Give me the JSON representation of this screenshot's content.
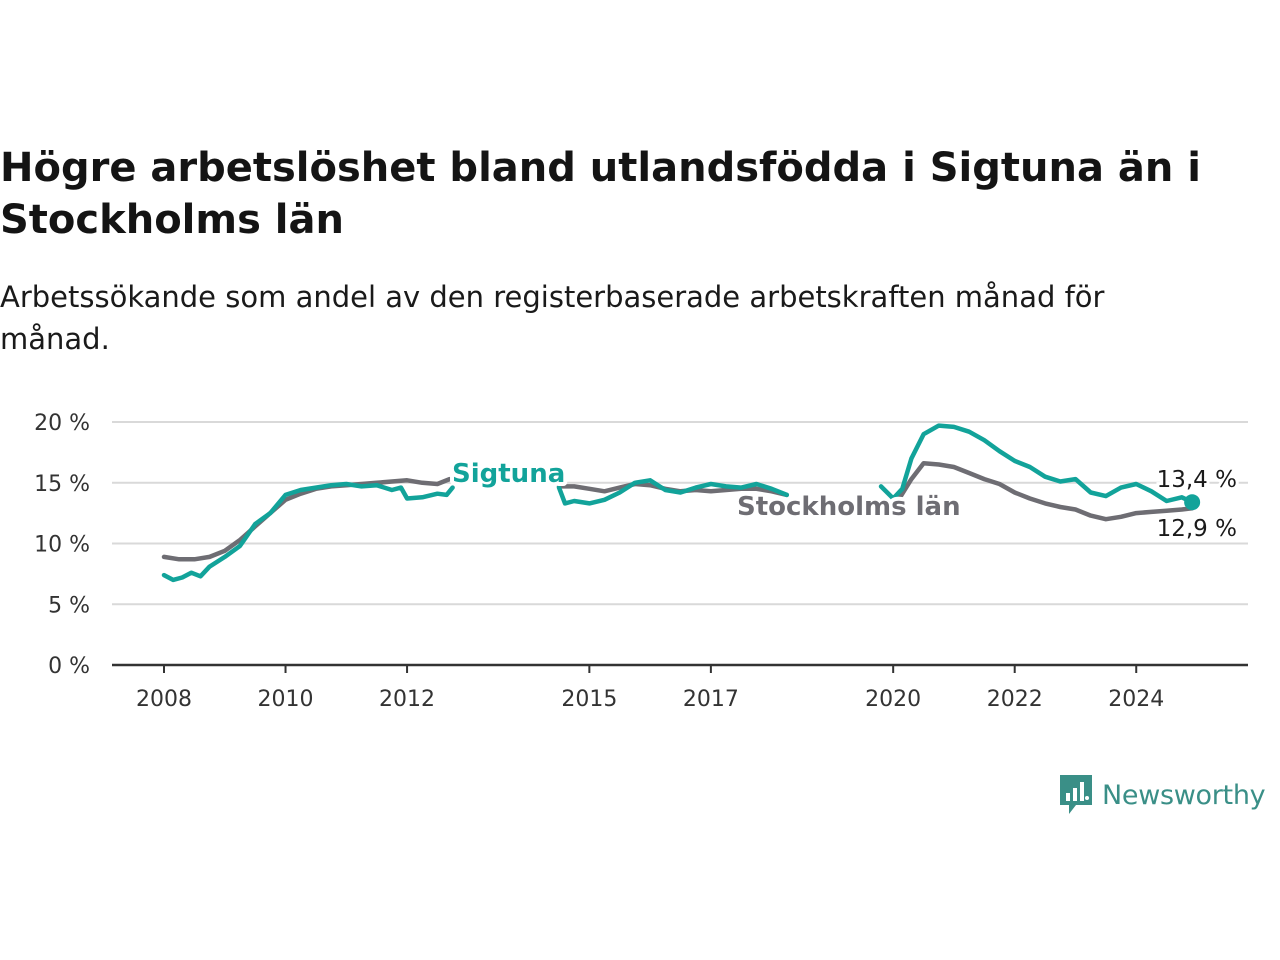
{
  "title": "Högre arbetslöshet bland utlandsfödda i Sigtuna än i Stockholms län",
  "subtitle": "Arbetssökande som andel av den registerbaserade arbetskraften månad för månad.",
  "brand": {
    "name": "Newsworthy",
    "icon": "newsworthy-logo-icon",
    "color": "#3a8f87"
  },
  "chart_data": {
    "type": "line",
    "title": "Högre arbetslöshet bland utlandsfödda i Sigtuna än i Stockholms län",
    "subtitle": "Arbetssökande som andel av den registerbaserade arbetskraften månad för månad.",
    "xlabel": "",
    "ylabel": "",
    "grid": true,
    "legend": "inline labels",
    "xlim": [
      2008,
      2025
    ],
    "ylim": [
      0,
      20
    ],
    "x_ticks": [
      2008,
      2010,
      2012,
      2015,
      2017,
      2020,
      2022,
      2024
    ],
    "x_tick_labels": [
      "2008",
      "2010",
      "2012",
      "2015",
      "2017",
      "2020",
      "2022",
      "2024"
    ],
    "y_ticks": [
      0,
      5,
      10,
      15,
      20
    ],
    "y_tick_labels": [
      "0 %",
      "5 %",
      "10 %",
      "15 %",
      "20 %"
    ],
    "series": [
      {
        "name": "Stockholms län",
        "color": "#6e6d73",
        "end_label": "12,9 %",
        "points": [
          [
            2008.0,
            8.9
          ],
          [
            2008.25,
            8.7
          ],
          [
            2008.5,
            8.7
          ],
          [
            2008.75,
            8.9
          ],
          [
            2009.0,
            9.4
          ],
          [
            2009.25,
            10.3
          ],
          [
            2009.5,
            11.4
          ],
          [
            2009.75,
            12.5
          ],
          [
            2010.0,
            13.6
          ],
          [
            2010.25,
            14.1
          ],
          [
            2010.5,
            14.5
          ],
          [
            2010.75,
            14.7
          ],
          [
            2011.0,
            14.8
          ],
          [
            2011.25,
            14.9
          ],
          [
            2011.5,
            15.0
          ],
          [
            2011.75,
            15.1
          ],
          [
            2012.0,
            15.2
          ],
          [
            2012.25,
            15.0
          ],
          [
            2012.5,
            14.9
          ],
          [
            2012.7,
            15.3
          ],
          null,
          [
            2014.5,
            14.7
          ],
          [
            2014.75,
            14.7
          ],
          [
            2015.0,
            14.5
          ],
          [
            2015.25,
            14.3
          ],
          [
            2015.5,
            14.6
          ],
          [
            2015.75,
            14.9
          ],
          [
            2016.0,
            14.8
          ],
          [
            2016.25,
            14.5
          ],
          [
            2016.5,
            14.3
          ],
          [
            2016.75,
            14.4
          ],
          [
            2017.0,
            14.3
          ],
          [
            2017.25,
            14.4
          ],
          [
            2017.5,
            14.5
          ],
          [
            2017.75,
            14.5
          ],
          [
            2018.0,
            14.3
          ],
          [
            2018.25,
            14.0
          ],
          null,
          [
            2020.1,
            13.7
          ],
          [
            2020.3,
            15.3
          ],
          [
            2020.5,
            16.6
          ],
          [
            2020.75,
            16.5
          ],
          [
            2021.0,
            16.3
          ],
          [
            2021.25,
            15.8
          ],
          [
            2021.5,
            15.3
          ],
          [
            2021.75,
            14.9
          ],
          [
            2022.0,
            14.2
          ],
          [
            2022.25,
            13.7
          ],
          [
            2022.5,
            13.3
          ],
          [
            2022.75,
            13.0
          ],
          [
            2023.0,
            12.8
          ],
          [
            2023.25,
            12.3
          ],
          [
            2023.5,
            12.0
          ],
          [
            2023.75,
            12.2
          ],
          [
            2024.0,
            12.5
          ],
          [
            2024.25,
            12.6
          ],
          [
            2024.5,
            12.7
          ],
          [
            2024.75,
            12.8
          ],
          [
            2024.92,
            12.9
          ]
        ]
      },
      {
        "name": "Sigtuna",
        "color": "#12a39a",
        "end_label": "13,4 %",
        "points": [
          [
            2008.0,
            7.4
          ],
          [
            2008.15,
            7.0
          ],
          [
            2008.3,
            7.2
          ],
          [
            2008.45,
            7.6
          ],
          [
            2008.6,
            7.3
          ],
          [
            2008.75,
            8.1
          ],
          [
            2009.0,
            8.9
          ],
          [
            2009.25,
            9.8
          ],
          [
            2009.5,
            11.6
          ],
          [
            2009.75,
            12.5
          ],
          [
            2010.0,
            14.0
          ],
          [
            2010.25,
            14.4
          ],
          [
            2010.5,
            14.6
          ],
          [
            2010.75,
            14.8
          ],
          [
            2011.0,
            14.9
          ],
          [
            2011.25,
            14.7
          ],
          [
            2011.5,
            14.8
          ],
          [
            2011.75,
            14.4
          ],
          [
            2011.9,
            14.6
          ],
          [
            2012.0,
            13.7
          ],
          [
            2012.25,
            13.8
          ],
          [
            2012.5,
            14.1
          ],
          [
            2012.65,
            14.0
          ],
          [
            2012.75,
            14.6
          ],
          null,
          [
            2014.5,
            14.6
          ],
          [
            2014.6,
            13.3
          ],
          [
            2014.75,
            13.5
          ],
          [
            2015.0,
            13.3
          ],
          [
            2015.25,
            13.6
          ],
          [
            2015.5,
            14.2
          ],
          [
            2015.75,
            15.0
          ],
          [
            2016.0,
            15.2
          ],
          [
            2016.25,
            14.4
          ],
          [
            2016.5,
            14.2
          ],
          [
            2016.75,
            14.6
          ],
          [
            2017.0,
            14.9
          ],
          [
            2017.25,
            14.7
          ],
          [
            2017.5,
            14.6
          ],
          [
            2017.75,
            14.9
          ],
          [
            2018.0,
            14.5
          ],
          [
            2018.25,
            14.0
          ],
          null,
          [
            2019.8,
            14.7
          ],
          [
            2020.0,
            13.7
          ],
          [
            2020.15,
            14.5
          ],
          [
            2020.3,
            17.0
          ],
          [
            2020.5,
            19.0
          ],
          [
            2020.75,
            19.7
          ],
          [
            2021.0,
            19.6
          ],
          [
            2021.25,
            19.2
          ],
          [
            2021.5,
            18.5
          ],
          [
            2021.75,
            17.6
          ],
          [
            2022.0,
            16.8
          ],
          [
            2022.25,
            16.3
          ],
          [
            2022.5,
            15.5
          ],
          [
            2022.75,
            15.1
          ],
          [
            2023.0,
            15.3
          ],
          [
            2023.25,
            14.2
          ],
          [
            2023.5,
            13.9
          ],
          [
            2023.75,
            14.6
          ],
          [
            2024.0,
            14.9
          ],
          [
            2024.25,
            14.3
          ],
          [
            2024.5,
            13.5
          ],
          [
            2024.75,
            13.8
          ],
          [
            2024.92,
            13.4
          ]
        ]
      }
    ]
  }
}
